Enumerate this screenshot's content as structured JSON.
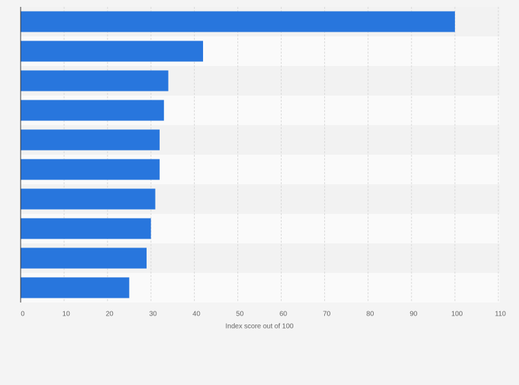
{
  "chart_data": {
    "type": "bar",
    "orientation": "horizontal",
    "categories": [
      null,
      null,
      null,
      null,
      null,
      null,
      null,
      null,
      null,
      null
    ],
    "values": [
      100,
      42,
      34,
      33,
      32,
      32,
      31,
      30,
      29,
      25
    ],
    "color": "#2876dd",
    "xlabel": "Index score out of 100",
    "xlim": [
      0,
      110
    ],
    "xticks": [
      0,
      10,
      20,
      30,
      40,
      50,
      60,
      70,
      80,
      90,
      100,
      110
    ],
    "grid": true
  }
}
